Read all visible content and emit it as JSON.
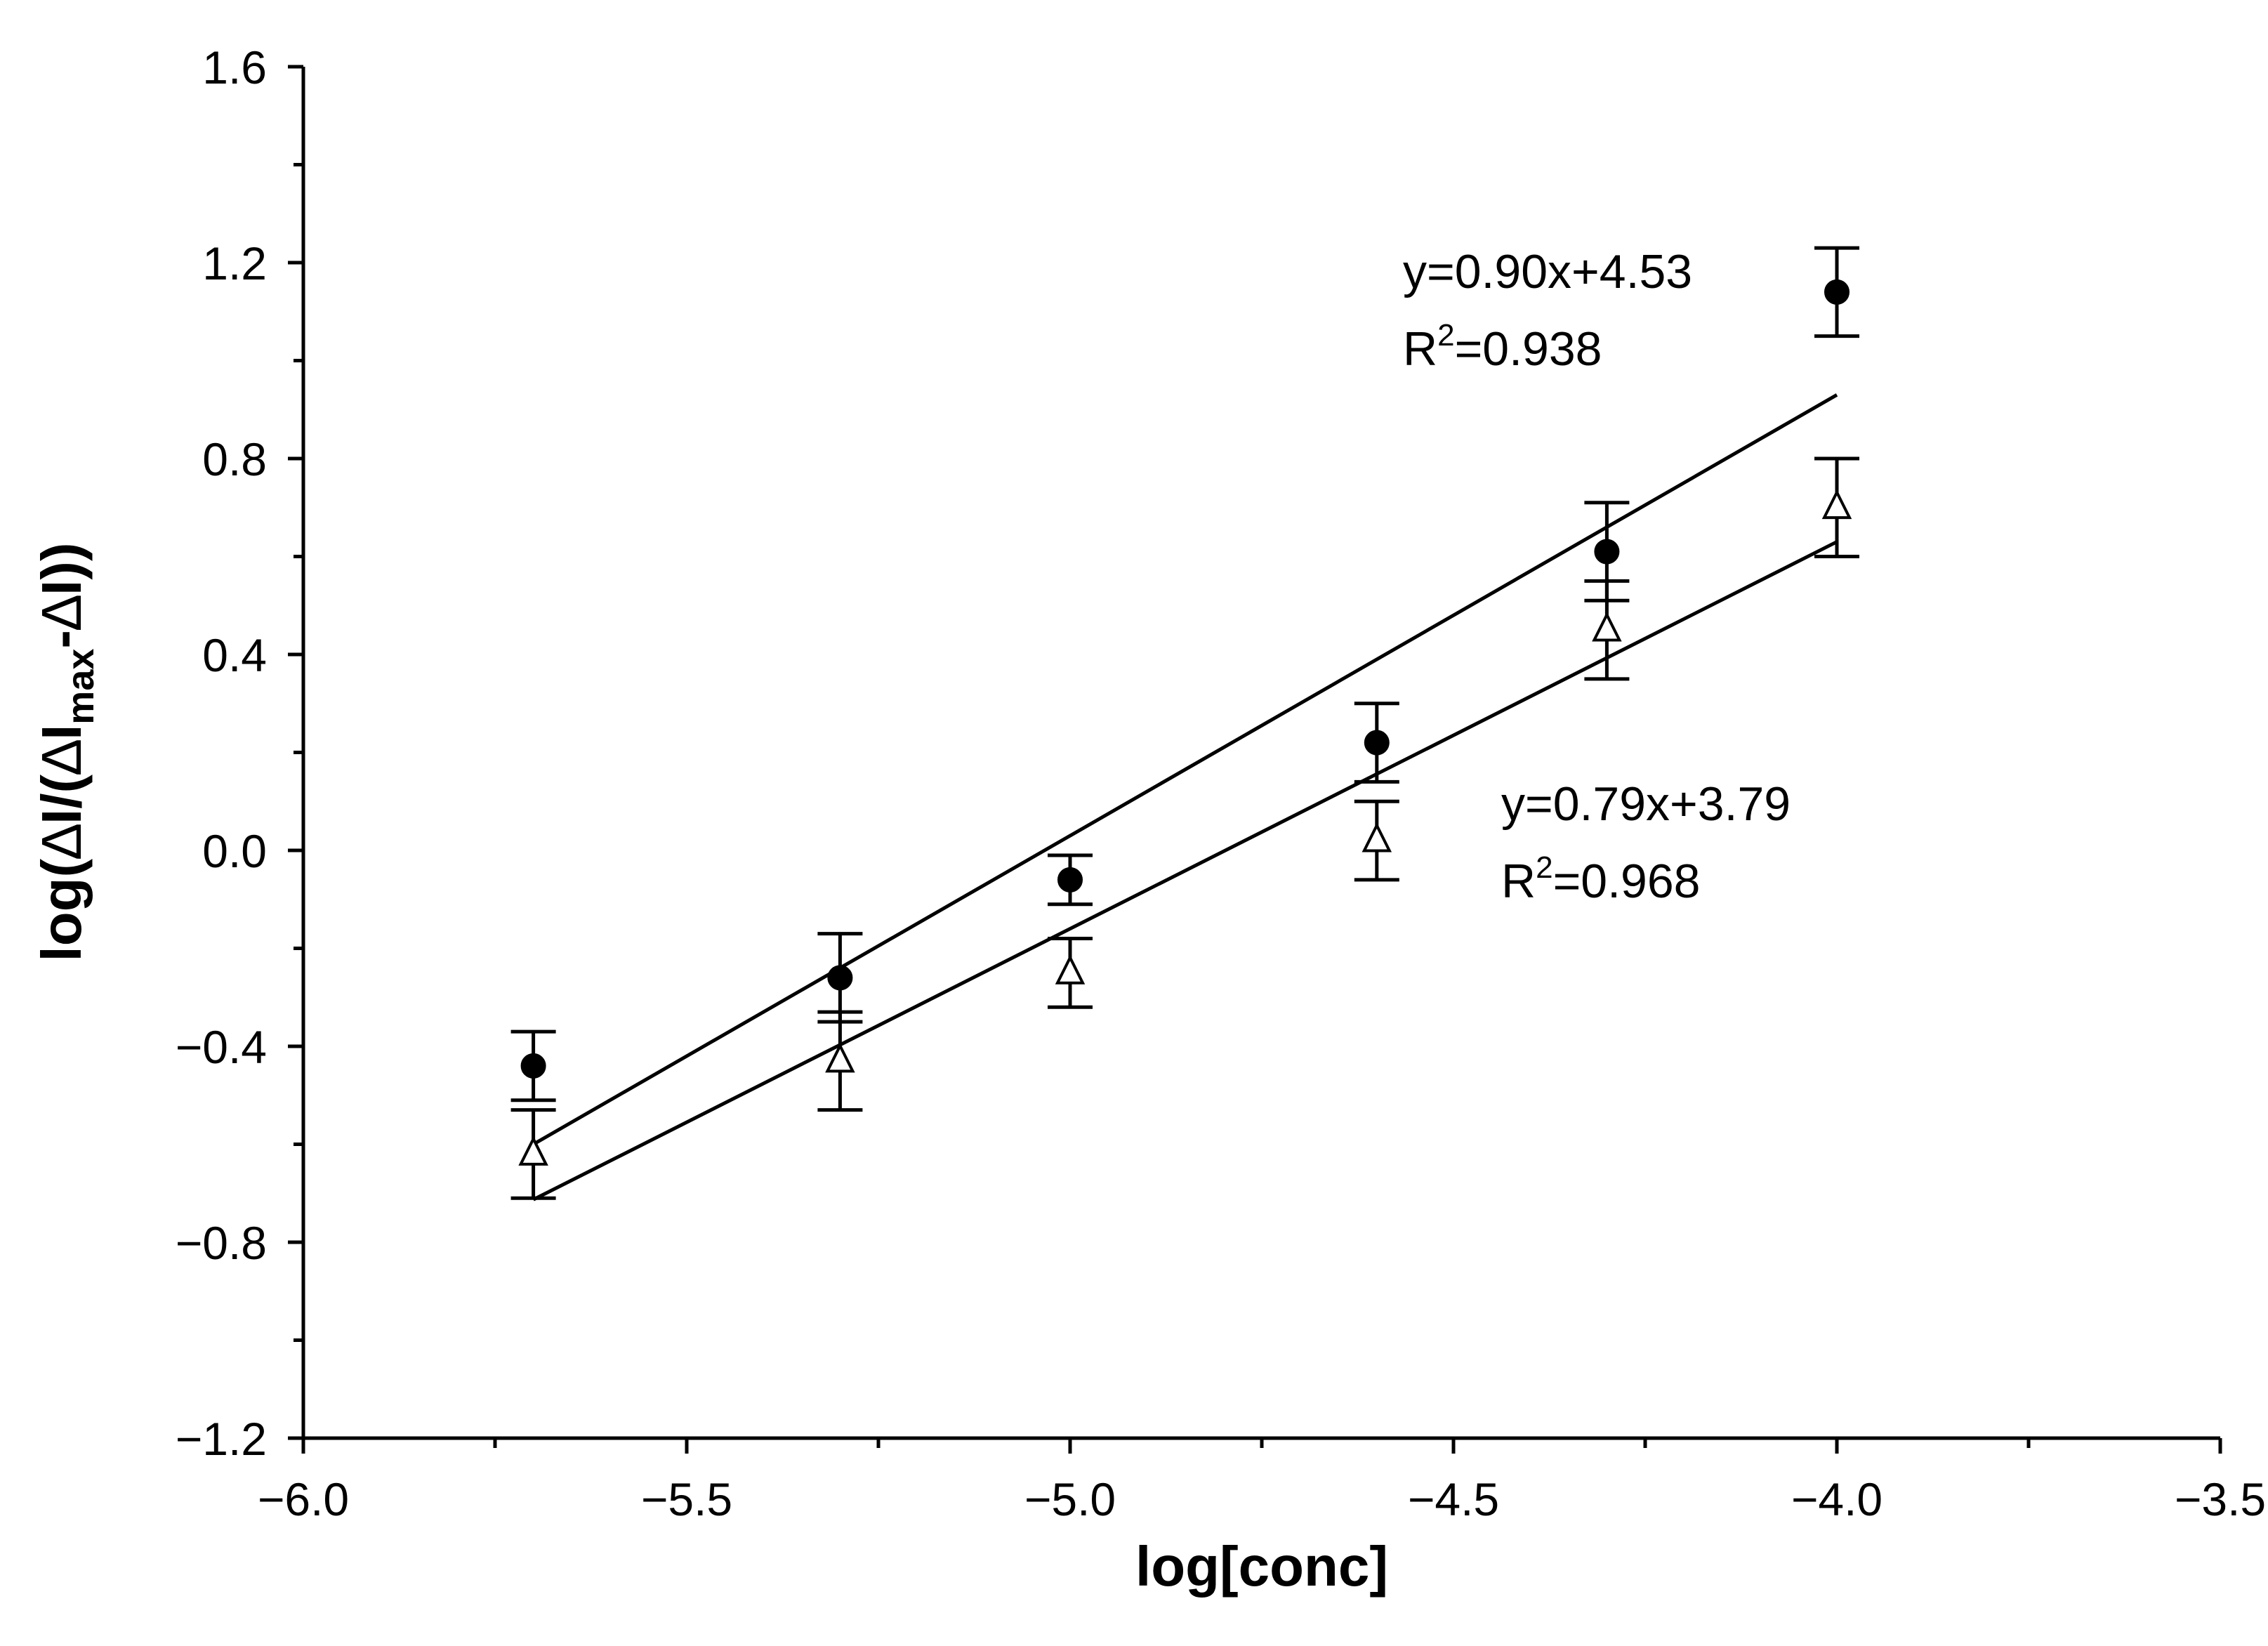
{
  "chart_data": {
    "type": "scatter",
    "title": "",
    "xlabel": "log[conc]",
    "ylabel": {
      "prefix": "log(",
      "d1": "∆",
      "i1": "I/(",
      "d2": "∆",
      "i2": "I",
      "sub": "max",
      "dash": "-",
      "d3": "∆",
      "end": "I))"
    },
    "xlim": [
      -6.0,
      -3.5
    ],
    "ylim": [
      -1.2,
      1.6
    ],
    "xticks": [
      -6.0,
      -5.5,
      -5.0,
      -4.5,
      -4.0,
      -3.5
    ],
    "xtick_labels": [
      "−6.0",
      "−5.5",
      "−5.0",
      "−4.5",
      "−4.0",
      "−3.5"
    ],
    "yticks": [
      -1.2,
      -0.8,
      -0.4,
      0.0,
      0.4,
      0.8,
      1.2,
      1.6
    ],
    "ytick_labels": [
      "−1.2",
      "−0.8",
      "−0.4",
      "0.0",
      "0.4",
      "0.8",
      "1.2",
      "1.6"
    ],
    "series": [
      {
        "name": "filled-circles",
        "marker": "filled-circle",
        "x": [
          -5.7,
          -5.3,
          -5.0,
          -4.6,
          -4.3,
          -4.0
        ],
        "y": [
          -0.44,
          -0.26,
          -0.06,
          0.22,
          0.61,
          1.14
        ],
        "err": [
          0.07,
          0.09,
          0.05,
          0.08,
          0.1,
          0.09
        ],
        "fit": {
          "slope": 0.9,
          "intercept": 4.53,
          "x_range": [
            -5.7,
            -4.0
          ]
        },
        "equation": "y=0.90x+4.53",
        "r2_prefix": "R",
        "r2_sup": "2",
        "r2_value": "=0.938"
      },
      {
        "name": "open-triangles",
        "marker": "open-triangle",
        "x": [
          -5.7,
          -5.3,
          -5.0,
          -4.6,
          -4.3,
          -4.0
        ],
        "y": [
          -0.62,
          -0.43,
          -0.25,
          0.02,
          0.45,
          0.7
        ],
        "err": [
          0.09,
          0.1,
          0.07,
          0.08,
          0.1,
          0.1
        ],
        "fit": {
          "slope": 0.79,
          "intercept": 3.79,
          "x_range": [
            -5.7,
            -4.0
          ]
        },
        "equation": "y=0.79x+3.79",
        "r2_prefix": "R",
        "r2_sup": "2",
        "r2_value": "=0.968"
      }
    ]
  }
}
